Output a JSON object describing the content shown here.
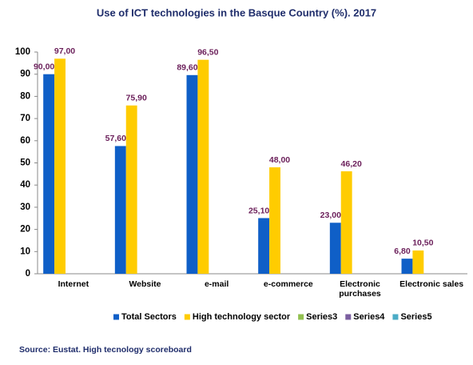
{
  "chart_data": {
    "type": "bar",
    "title": "Use of ICT technologies in the Basque Country (%). 2017",
    "categories": [
      "Internet",
      "Website",
      "e-mail",
      "e-commerce",
      "Electronic purchases",
      "Electronic sales"
    ],
    "series": [
      {
        "name": "Total Sectors",
        "color": "#0f5fc7",
        "values": [
          90,
          57.6,
          89.6,
          25.1,
          23,
          6.8
        ],
        "value_labels": [
          "90,00",
          "57,60",
          "89,60",
          "25,10",
          "23,00",
          "6,80"
        ]
      },
      {
        "name": "High technology sector",
        "color": "#ffcc00",
        "values": [
          97,
          75.9,
          96.5,
          48,
          46.2,
          10.5
        ],
        "value_labels": [
          "97,00",
          "75,90",
          "96,50",
          "48,00",
          "46,20",
          "10,50"
        ]
      },
      {
        "name": "Series3",
        "color": "#92c050",
        "values": [
          null,
          null,
          null,
          null,
          null,
          null
        ]
      },
      {
        "name": "Series4",
        "color": "#7b5fa0",
        "values": [
          null,
          null,
          null,
          null,
          null,
          null
        ]
      },
      {
        "name": "Series5",
        "color": "#4bacc6",
        "values": [
          null,
          null,
          null,
          null,
          null,
          null
        ]
      }
    ],
    "ylim": [
      0,
      100
    ],
    "yticks": [
      0,
      10,
      20,
      30,
      40,
      50,
      60,
      70,
      80,
      90,
      100
    ],
    "grid": false,
    "legend": "bottom",
    "source": "Source: Eustat. High tecnology scoreboard"
  }
}
